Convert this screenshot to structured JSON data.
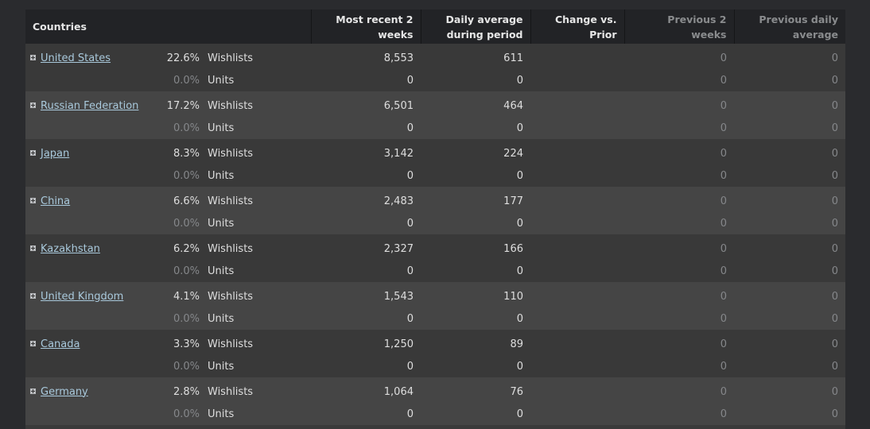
{
  "columns": {
    "countries": "Countries",
    "recent": "Most recent 2 weeks",
    "daily_avg": "Daily average during period",
    "change": "Change vs. Prior",
    "prev_2w": "Previous 2 weeks",
    "prev_daily": "Previous daily average"
  },
  "rows": [
    {
      "country": "United States",
      "wish_pct": "22.6%",
      "wish_label": "Wishlists",
      "wish_recent": "8,553",
      "wish_daily": "611",
      "wish_prev2w": "0",
      "wish_prevdaily": "0",
      "unit_pct": "0.0%",
      "unit_label": "Units",
      "unit_recent": "0",
      "unit_daily": "0",
      "unit_prev2w": "0",
      "unit_prevdaily": "0"
    },
    {
      "country": "Russian Federation",
      "wish_pct": "17.2%",
      "wish_label": "Wishlists",
      "wish_recent": "6,501",
      "wish_daily": "464",
      "wish_prev2w": "0",
      "wish_prevdaily": "0",
      "unit_pct": "0.0%",
      "unit_label": "Units",
      "unit_recent": "0",
      "unit_daily": "0",
      "unit_prev2w": "0",
      "unit_prevdaily": "0"
    },
    {
      "country": "Japan",
      "wish_pct": "8.3%",
      "wish_label": "Wishlists",
      "wish_recent": "3,142",
      "wish_daily": "224",
      "wish_prev2w": "0",
      "wish_prevdaily": "0",
      "unit_pct": "0.0%",
      "unit_label": "Units",
      "unit_recent": "0",
      "unit_daily": "0",
      "unit_prev2w": "0",
      "unit_prevdaily": "0"
    },
    {
      "country": "China",
      "wish_pct": "6.6%",
      "wish_label": "Wishlists",
      "wish_recent": "2,483",
      "wish_daily": "177",
      "wish_prev2w": "0",
      "wish_prevdaily": "0",
      "unit_pct": "0.0%",
      "unit_label": "Units",
      "unit_recent": "0",
      "unit_daily": "0",
      "unit_prev2w": "0",
      "unit_prevdaily": "0"
    },
    {
      "country": "Kazakhstan",
      "wish_pct": "6.2%",
      "wish_label": "Wishlists",
      "wish_recent": "2,327",
      "wish_daily": "166",
      "wish_prev2w": "0",
      "wish_prevdaily": "0",
      "unit_pct": "0.0%",
      "unit_label": "Units",
      "unit_recent": "0",
      "unit_daily": "0",
      "unit_prev2w": "0",
      "unit_prevdaily": "0"
    },
    {
      "country": "United Kingdom",
      "wish_pct": "4.1%",
      "wish_label": "Wishlists",
      "wish_recent": "1,543",
      "wish_daily": "110",
      "wish_prev2w": "0",
      "wish_prevdaily": "0",
      "unit_pct": "0.0%",
      "unit_label": "Units",
      "unit_recent": "0",
      "unit_daily": "0",
      "unit_prev2w": "0",
      "unit_prevdaily": "0"
    },
    {
      "country": "Canada",
      "wish_pct": "3.3%",
      "wish_label": "Wishlists",
      "wish_recent": "1,250",
      "wish_daily": "89",
      "wish_prev2w": "0",
      "wish_prevdaily": "0",
      "unit_pct": "0.0%",
      "unit_label": "Units",
      "unit_recent": "0",
      "unit_daily": "0",
      "unit_prev2w": "0",
      "unit_prevdaily": "0"
    },
    {
      "country": "Germany",
      "wish_pct": "2.8%",
      "wish_label": "Wishlists",
      "wish_recent": "1,064",
      "wish_daily": "76",
      "wish_prev2w": "0",
      "wish_prevdaily": "0",
      "unit_pct": "0.0%",
      "unit_label": "Units",
      "unit_recent": "0",
      "unit_daily": "0",
      "unit_prev2w": "0",
      "unit_prevdaily": "0"
    }
  ],
  "icons": {
    "expand": "plus-box-icon"
  },
  "colors": {
    "link": "#a9c9dc",
    "header_bg": "#222326",
    "row_dark": "#393939",
    "row_light": "#454545"
  }
}
